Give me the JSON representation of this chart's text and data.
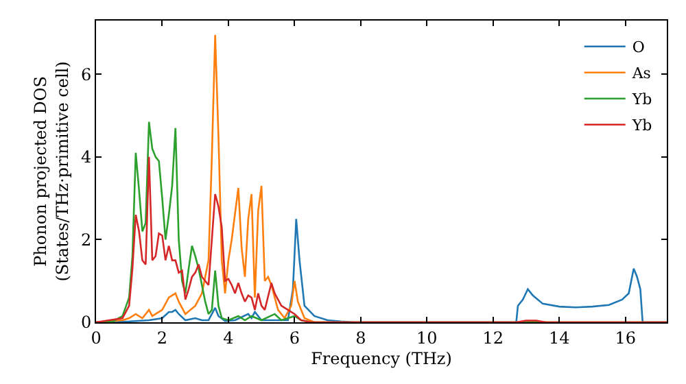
{
  "chart_data": {
    "type": "line",
    "xlabel": "Frequency (THz)",
    "ylabel": "Phonon projected DOS\n(States/THz·primitive cell)",
    "xlim": [
      0,
      17.25
    ],
    "ylim": [
      0,
      7.3
    ],
    "xticks": [
      0,
      2,
      4,
      6,
      8,
      10,
      12,
      14,
      16
    ],
    "yticks": [
      0,
      2,
      4,
      6
    ],
    "legend": "top right",
    "series": [
      {
        "name": "O",
        "color": "#1f77b4",
        "x": [
          0,
          1.0,
          1.6,
          2.0,
          2.2,
          2.3,
          2.4,
          2.5,
          2.7,
          3.0,
          3.2,
          3.4,
          3.6,
          3.7,
          3.9,
          4.2,
          4.6,
          4.7,
          4.8,
          5.0,
          5.4,
          5.8,
          5.95,
          6.05,
          6.15,
          6.3,
          6.6,
          7.0,
          7.4,
          7.8,
          12.7,
          12.75,
          12.9,
          13.05,
          13.2,
          13.5,
          14.0,
          14.5,
          15.0,
          15.5,
          15.9,
          16.1,
          16.25,
          16.35,
          16.45,
          16.52,
          17.25
        ],
        "values": [
          0,
          0.02,
          0.05,
          0.1,
          0.25,
          0.25,
          0.3,
          0.2,
          0.05,
          0.1,
          0.05,
          0.05,
          0.35,
          0.15,
          0.03,
          0.05,
          0.2,
          0.1,
          0.25,
          0.05,
          0.05,
          0.05,
          0.8,
          2.5,
          1.5,
          0.4,
          0.15,
          0.05,
          0.02,
          0,
          0,
          0.4,
          0.55,
          0.8,
          0.65,
          0.45,
          0.38,
          0.36,
          0.38,
          0.42,
          0.55,
          0.7,
          1.3,
          1.1,
          0.8,
          0,
          0
        ]
      },
      {
        "name": "As",
        "color": "#ff7f0e",
        "x": [
          0,
          0.8,
          1.0,
          1.2,
          1.4,
          1.6,
          1.7,
          2.0,
          2.2,
          2.4,
          2.5,
          2.7,
          3.0,
          3.2,
          3.4,
          3.5,
          3.6,
          3.7,
          3.8,
          3.9,
          4.0,
          4.1,
          4.3,
          4.4,
          4.5,
          4.6,
          4.7,
          4.8,
          4.9,
          5.0,
          5.1,
          5.2,
          5.3,
          5.5,
          5.7,
          5.9,
          6.0,
          6.1,
          6.3,
          6.6,
          17.25
        ],
        "values": [
          0,
          0.05,
          0.1,
          0.2,
          0.1,
          0.3,
          0.15,
          0.3,
          0.6,
          0.7,
          0.5,
          0.2,
          0.4,
          0.7,
          1.5,
          4.0,
          6.95,
          4.5,
          1.5,
          0.7,
          1.5,
          2.0,
          3.25,
          1.8,
          1.1,
          2.5,
          3.1,
          0.6,
          2.7,
          3.3,
          1.0,
          1.1,
          0.9,
          0.3,
          0.1,
          0.4,
          1.0,
          0.5,
          0.1,
          0,
          0
        ]
      },
      {
        "name": "Yb",
        "color": "#2ca02c",
        "x": [
          0,
          0.5,
          0.8,
          1.0,
          1.1,
          1.2,
          1.3,
          1.4,
          1.5,
          1.6,
          1.7,
          1.8,
          1.9,
          2.0,
          2.1,
          2.2,
          2.3,
          2.4,
          2.5,
          2.6,
          2.7,
          2.8,
          2.9,
          3.0,
          3.1,
          3.2,
          3.3,
          3.4,
          3.5,
          3.6,
          3.7,
          3.8,
          4.0,
          4.3,
          4.5,
          4.7,
          5.0,
          5.4,
          5.6,
          6.0,
          6.2,
          6.5,
          17.25
        ],
        "values": [
          0,
          0.02,
          0.15,
          0.6,
          1.6,
          4.1,
          3.2,
          2.2,
          2.4,
          4.85,
          4.2,
          4.0,
          3.9,
          3.0,
          2.0,
          2.6,
          3.3,
          4.7,
          2.0,
          1.0,
          0.7,
          1.3,
          1.85,
          1.6,
          1.3,
          0.9,
          0.5,
          0.2,
          0.3,
          1.25,
          0.4,
          0.1,
          0.05,
          0.15,
          0.05,
          0.15,
          0.05,
          0.2,
          0.05,
          0.15,
          0.05,
          0,
          0
        ]
      },
      {
        "name": "Yb",
        "color": "#d62728",
        "x": [
          0,
          0.8,
          1.0,
          1.1,
          1.2,
          1.3,
          1.4,
          1.5,
          1.6,
          1.7,
          1.8,
          1.9,
          2.0,
          2.1,
          2.2,
          2.3,
          2.4,
          2.5,
          2.6,
          2.7,
          2.8,
          2.9,
          3.0,
          3.1,
          3.2,
          3.3,
          3.4,
          3.5,
          3.6,
          3.7,
          3.8,
          3.9,
          4.0,
          4.1,
          4.2,
          4.3,
          4.4,
          4.5,
          4.6,
          4.7,
          4.8,
          4.9,
          5.0,
          5.1,
          5.3,
          5.4,
          5.6,
          5.8,
          6.0,
          6.2,
          6.5,
          12.7,
          13.0,
          13.3,
          13.6,
          17.25
        ],
        "values": [
          0,
          0.1,
          0.4,
          1.3,
          2.6,
          2.2,
          1.5,
          1.4,
          4.0,
          1.5,
          1.6,
          2.15,
          2.1,
          1.5,
          1.85,
          1.5,
          1.5,
          1.2,
          1.25,
          0.55,
          0.8,
          1.1,
          1.2,
          1.4,
          1.1,
          1.0,
          0.9,
          2.0,
          3.1,
          2.8,
          2.3,
          1.0,
          1.05,
          0.9,
          0.7,
          0.95,
          0.7,
          0.5,
          0.65,
          0.6,
          0.3,
          0.7,
          0.4,
          0.3,
          0.95,
          0.7,
          0.4,
          0.3,
          0.2,
          0.05,
          0,
          0,
          0.04,
          0.04,
          0,
          0
        ]
      }
    ]
  }
}
